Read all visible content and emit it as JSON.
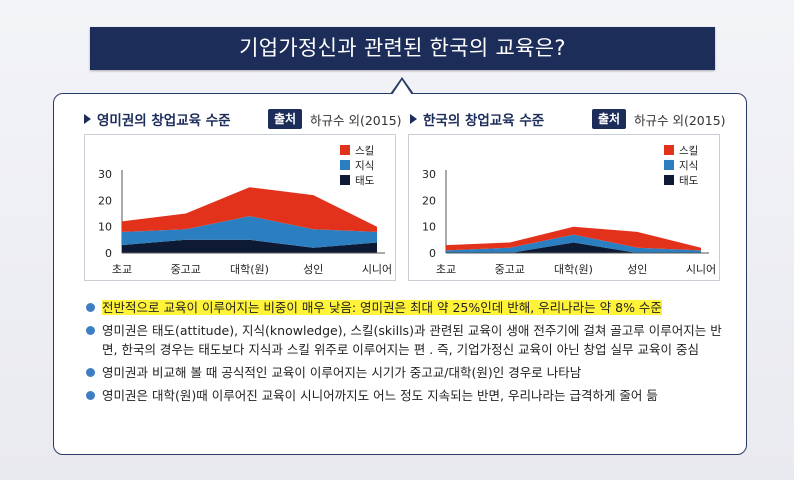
{
  "title": "기업가정신과 관련된 한국의 교육은?",
  "panels": [
    {
      "heading": "영미권의 창업교육 수준",
      "source_tag": "출처",
      "source": "하규수 외(2015)"
    },
    {
      "heading": "한국의 창업교육 수준",
      "source_tag": "출처",
      "source": "하규수 외(2015)"
    }
  ],
  "chart_data": [
    {
      "type": "area",
      "stacked": true,
      "categories": [
        "초교",
        "중고교",
        "대학(원)",
        "성인",
        "시니어"
      ],
      "ylim": [
        0,
        30
      ],
      "yticks": [
        0,
        10,
        20,
        30
      ],
      "legend_position": "top-right",
      "series": [
        {
          "name": "태도",
          "color": "#0e1a33",
          "values": [
            3,
            5,
            5,
            2,
            4
          ]
        },
        {
          "name": "지식",
          "color": "#2b7fc0",
          "values": [
            5,
            4,
            9,
            7,
            4
          ]
        },
        {
          "name": "스킬",
          "color": "#e3321b",
          "values": [
            4,
            6,
            11,
            13,
            2
          ]
        }
      ]
    },
    {
      "type": "area",
      "stacked": true,
      "categories": [
        "초교",
        "중고교",
        "대학(원)",
        "성인",
        "시니어"
      ],
      "ylim": [
        0,
        30
      ],
      "yticks": [
        0,
        10,
        20,
        30
      ],
      "legend_position": "top-right",
      "series": [
        {
          "name": "태도",
          "color": "#0e1a33",
          "values": [
            0,
            0,
            4,
            0,
            0
          ]
        },
        {
          "name": "지식",
          "color": "#2b7fc0",
          "values": [
            1,
            2,
            3,
            2,
            1
          ]
        },
        {
          "name": "스킬",
          "color": "#e3321b",
          "values": [
            2,
            2,
            3,
            6,
            1
          ]
        }
      ]
    }
  ],
  "bullets": [
    {
      "text": "전반적으로 교육이 이루어지는 비중이 매우 낮음: 영미권은 최대 약 25%인데 반해, 우리나라는 약 8% 수준",
      "highlight": true
    },
    {
      "text": "영미권은 태도(attitude), 지식(knowledge), 스킬(skills)과 관련된 교육이 생애 전주기에 걸쳐 골고루 이루어지는 반면, 한국의 경우는 태도보다 지식과 스킬 위주로 이루어지는 편 . 즉, 기업가정신 교육이 아닌 창업 실무 교육이 중심",
      "highlight": false
    },
    {
      "text": "영미권과 비교해 볼 때 공식적인 교육이 이루어지는 시기가 중고교/대학(원)인 경우로 나타남",
      "highlight": false
    },
    {
      "text": "영미권은 대학(원)때 이루어진 교육이 시니어까지도 어느 정도 지속되는 반면, 우리나라는 급격하게 줄어 듦",
      "highlight": false
    }
  ]
}
